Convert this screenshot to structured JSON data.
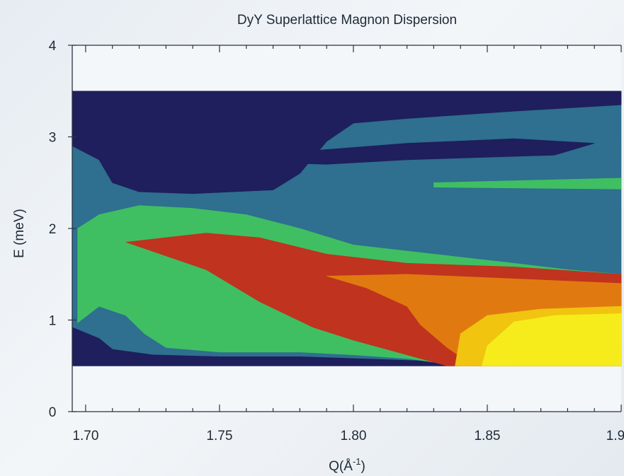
{
  "chart_data": {
    "type": "contour",
    "title": "DyY Superlattice Magnon Dispersion",
    "xlabel": "Q(Å",
    "xlabel_sup": "-1",
    "xlabel_close": ")",
    "ylabel": "E (meV)",
    "xlim": [
      1.695,
      1.9
    ],
    "ylim": [
      0,
      4
    ],
    "x_ticks": [
      1.7,
      1.75,
      1.8,
      1.85,
      1.9
    ],
    "x_tick_labels": [
      "1.70",
      "1.75",
      "1.80",
      "1.85",
      "1.9"
    ],
    "y_ticks": [
      0,
      1,
      2,
      3,
      4
    ],
    "y_tick_labels": [
      "0",
      "1",
      "2",
      "3",
      "4"
    ],
    "data_extent": {
      "x": [
        1.695,
        1.9
      ],
      "y": [
        0.5,
        3.5
      ]
    },
    "levels": [
      {
        "level": 0,
        "color": "#1e1f5c"
      },
      {
        "level": 1,
        "color": "#2f6f8f"
      },
      {
        "level": 2,
        "color": "#3fbf62"
      },
      {
        "level": 3,
        "color": "#c0331e"
      },
      {
        "level": 4,
        "color": "#e07a10"
      },
      {
        "level": 5,
        "color": "#f1c40f"
      },
      {
        "level": 6,
        "color": "#f6ec1c"
      }
    ],
    "regions": [
      {
        "level": 1,
        "points": [
          [
            1.695,
            0.5
          ],
          [
            1.9,
            0.5
          ],
          [
            1.9,
            3.5
          ],
          [
            1.695,
            3.5
          ]
        ]
      },
      {
        "level": 0,
        "points": [
          [
            1.695,
            3.5
          ],
          [
            1.9,
            3.5
          ],
          [
            1.9,
            3.35
          ],
          [
            1.86,
            3.28
          ],
          [
            1.82,
            3.2
          ],
          [
            1.8,
            3.15
          ],
          [
            1.79,
            2.95
          ],
          [
            1.78,
            2.6
          ],
          [
            1.77,
            2.42
          ],
          [
            1.74,
            2.38
          ],
          [
            1.72,
            2.4
          ],
          [
            1.71,
            2.5
          ],
          [
            1.705,
            2.75
          ],
          [
            1.695,
            2.9
          ]
        ]
      },
      {
        "level": 0,
        "points": [
          [
            1.695,
            0.5
          ],
          [
            1.695,
            0.92
          ],
          [
            1.705,
            0.8
          ],
          [
            1.71,
            0.68
          ],
          [
            1.725,
            0.62
          ],
          [
            1.75,
            0.6
          ],
          [
            1.78,
            0.6
          ],
          [
            1.8,
            0.58
          ],
          [
            1.83,
            0.55
          ],
          [
            1.84,
            0.5
          ]
        ]
      },
      {
        "level": 0,
        "points": [
          [
            1.767,
            2.72
          ],
          [
            1.785,
            2.85
          ],
          [
            1.82,
            2.93
          ],
          [
            1.86,
            2.98
          ],
          [
            1.89,
            2.93
          ],
          [
            1.875,
            2.8
          ],
          [
            1.82,
            2.75
          ],
          [
            1.79,
            2.7
          ]
        ]
      },
      {
        "level": 2,
        "points": [
          [
            1.697,
            0.97
          ],
          [
            1.705,
            1.15
          ],
          [
            1.715,
            1.05
          ],
          [
            1.722,
            0.85
          ],
          [
            1.73,
            0.7
          ],
          [
            1.75,
            0.65
          ],
          [
            1.78,
            0.65
          ],
          [
            1.8,
            0.62
          ],
          [
            1.82,
            0.58
          ],
          [
            1.835,
            0.52
          ],
          [
            1.86,
            0.5
          ],
          [
            1.9,
            0.5
          ],
          [
            1.9,
            1.5
          ],
          [
            1.88,
            1.55
          ],
          [
            1.86,
            1.62
          ],
          [
            1.83,
            1.72
          ],
          [
            1.8,
            1.82
          ],
          [
            1.78,
            2.0
          ],
          [
            1.76,
            2.15
          ],
          [
            1.74,
            2.22
          ],
          [
            1.72,
            2.25
          ],
          [
            1.705,
            2.15
          ],
          [
            1.697,
            2.0
          ]
        ]
      },
      {
        "level": 2,
        "points": [
          [
            1.83,
            2.5
          ],
          [
            1.9,
            2.55
          ],
          [
            1.9,
            2.43
          ],
          [
            1.83,
            2.45
          ]
        ]
      },
      {
        "level": 3,
        "points": [
          [
            1.715,
            1.85
          ],
          [
            1.745,
            1.95
          ],
          [
            1.765,
            1.9
          ],
          [
            1.79,
            1.72
          ],
          [
            1.82,
            1.62
          ],
          [
            1.86,
            1.58
          ],
          [
            1.9,
            1.5
          ],
          [
            1.9,
            0.5
          ],
          [
            1.835,
            0.5
          ],
          [
            1.82,
            0.62
          ],
          [
            1.8,
            0.78
          ],
          [
            1.785,
            0.92
          ],
          [
            1.765,
            1.2
          ],
          [
            1.745,
            1.55
          ]
        ]
      },
      {
        "level": 4,
        "points": [
          [
            1.79,
            1.48
          ],
          [
            1.82,
            1.5
          ],
          [
            1.86,
            1.45
          ],
          [
            1.9,
            1.4
          ],
          [
            1.9,
            0.5
          ],
          [
            1.845,
            0.5
          ],
          [
            1.835,
            0.7
          ],
          [
            1.825,
            0.95
          ],
          [
            1.82,
            1.15
          ],
          [
            1.805,
            1.35
          ]
        ]
      },
      {
        "level": 5,
        "points": [
          [
            1.838,
            0.5
          ],
          [
            1.84,
            0.85
          ],
          [
            1.85,
            1.05
          ],
          [
            1.87,
            1.12
          ],
          [
            1.9,
            1.15
          ],
          [
            1.9,
            0.5
          ]
        ]
      },
      {
        "level": 6,
        "points": [
          [
            1.848,
            0.5
          ],
          [
            1.85,
            0.72
          ],
          [
            1.86,
            0.98
          ],
          [
            1.875,
            1.05
          ],
          [
            1.9,
            1.07
          ],
          [
            1.9,
            0.5
          ]
        ]
      }
    ]
  }
}
